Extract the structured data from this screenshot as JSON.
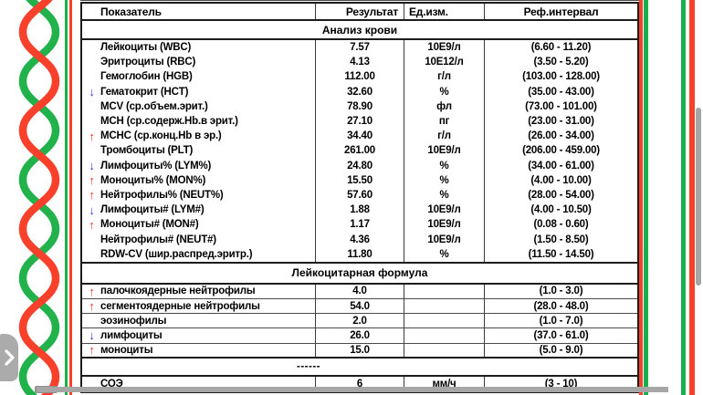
{
  "colors": {
    "helix_green": "#22b24c",
    "helix_red": "#f8402a",
    "stripe_green": "#17b04a",
    "stripe_red": "#f5402a",
    "arrow_up": "#e93223",
    "arrow_down": "#3238d8",
    "scrollbar": "#a6a6a6",
    "table_border": "#1c1c1c"
  },
  "icons": {
    "arrow_up": "↑",
    "arrow_down": "↓"
  },
  "table": {
    "columns": [
      "Показатель",
      "Результат",
      "Ед.изм.",
      "Реф.интервал"
    ],
    "sections": [
      {
        "title": "Анализ крови",
        "rows": [
          {
            "flag": "",
            "name": "Лейкоциты (WBC)",
            "result": "7.57",
            "unit": "10E9/л",
            "ref": "(6.60 - 11.20)"
          },
          {
            "flag": "",
            "name": "Эритроциты (RBC)",
            "result": "4.13",
            "unit": "10E12/л",
            "ref": "(3.50 - 5.20)"
          },
          {
            "flag": "",
            "name": "Гемоглобин (HGB)",
            "result": "112.00",
            "unit": "г/л",
            "ref": "(103.00 - 128.00)"
          },
          {
            "flag": "down",
            "name": "Гематокрит (HCT)",
            "result": "32.60",
            "unit": "%",
            "ref": "(35.00 - 43.00)"
          },
          {
            "flag": "",
            "name": "MCV (ср.объем.эрит.)",
            "result": "78.90",
            "unit": "фл",
            "ref": "(73.00 - 101.00)"
          },
          {
            "flag": "",
            "name": "MCH (ср.содерж.Hb.в эрит.)",
            "result": "27.10",
            "unit": "пг",
            "ref": "(23.00 - 31.00)"
          },
          {
            "flag": "up",
            "name": "MCHC (ср.конц.Hb в эр.)",
            "result": "34.40",
            "unit": "г/л",
            "ref": "(26.00 - 34.00)"
          },
          {
            "flag": "",
            "name": "Тромбоциты (PLT)",
            "result": "261.00",
            "unit": "10E9/л",
            "ref": "(206.00 - 459.00)"
          },
          {
            "flag": "down",
            "name": "Лимфоциты% (LYM%)",
            "result": "24.80",
            "unit": "%",
            "ref": "(34.00 - 61.00)"
          },
          {
            "flag": "up",
            "name": "Моноциты% (MON%)",
            "result": "15.50",
            "unit": "%",
            "ref": "(4.00 - 10.00)"
          },
          {
            "flag": "up",
            "name": "Нейтрофилы% (NEUT%)",
            "result": "57.60",
            "unit": "%",
            "ref": "(28.00 - 54.00)"
          },
          {
            "flag": "down",
            "name": "Лимфоциты# (LYM#)",
            "result": "1.88",
            "unit": "10E9/л",
            "ref": "(4.00 - 10.50)"
          },
          {
            "flag": "up",
            "name": "Моноциты# (MON#)",
            "result": "1.17",
            "unit": "10E9/л",
            "ref": "(0.08 - 0.60)"
          },
          {
            "flag": "",
            "name": "Нейтрофилы# (NEUT#)",
            "result": "4.36",
            "unit": "10E9/л",
            "ref": "(1.50 - 8.50)"
          },
          {
            "flag": "",
            "name": "RDW-CV (шир.распред.эритр.)",
            "result": "11.80",
            "unit": "%",
            "ref": "(11.50 - 14.50)"
          }
        ]
      },
      {
        "title": "Лейкоцитарная формула",
        "rows": [
          {
            "flag": "up",
            "name": "палочкоядерные нейтрофилы",
            "result": "4.0",
            "unit": "",
            "ref": "(1.0 - 3.0)"
          },
          {
            "flag": "up",
            "name": "сегментоядерные нейтрофилы",
            "result": "54.0",
            "unit": "",
            "ref": "(28.0 - 48.0)"
          },
          {
            "flag": "",
            "name": "эозинофилы",
            "result": "2.0",
            "unit": "",
            "ref": "(1.0 - 7.0)"
          },
          {
            "flag": "down",
            "name": "лимфоциты",
            "result": "26.0",
            "unit": "",
            "ref": "(37.0 - 61.0)"
          },
          {
            "flag": "up",
            "name": "моноциты",
            "result": "15.0",
            "unit": "",
            "ref": "(5.0 - 9.0)"
          }
        ]
      }
    ],
    "separator": "------",
    "footer": {
      "flag": "",
      "name": "СОЭ",
      "result": "6",
      "unit": "мм/ч",
      "ref": "(3 - 10)"
    }
  }
}
